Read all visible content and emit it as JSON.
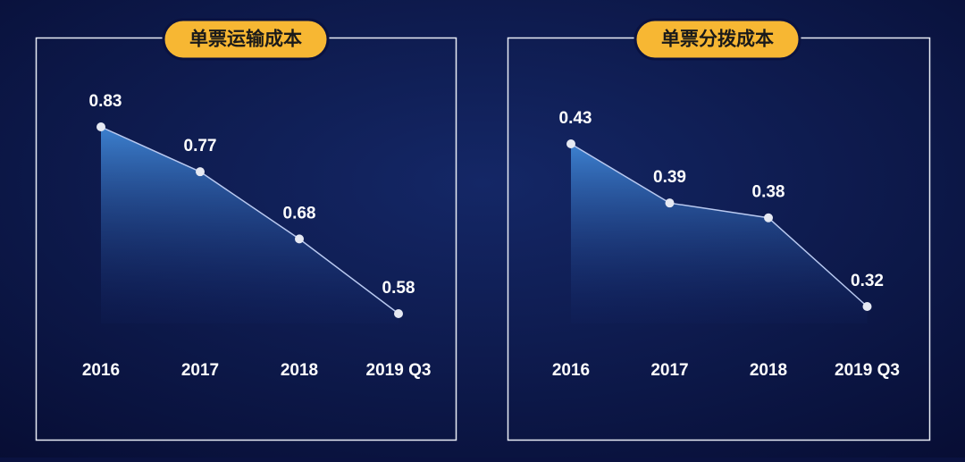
{
  "chart_data": [
    {
      "type": "area",
      "title": "单票运输成本",
      "categories": [
        "2016",
        "2017",
        "2018",
        "2019 Q3"
      ],
      "values": [
        0.83,
        0.77,
        0.68,
        0.58
      ],
      "color": "#b9c9f0"
    },
    {
      "type": "area",
      "title": "单票分拨成本",
      "categories": [
        "2016",
        "2017",
        "2018",
        "2019 Q3"
      ],
      "values": [
        0.43,
        0.39,
        0.38,
        0.32
      ],
      "color": "#b9c9f0"
    }
  ]
}
